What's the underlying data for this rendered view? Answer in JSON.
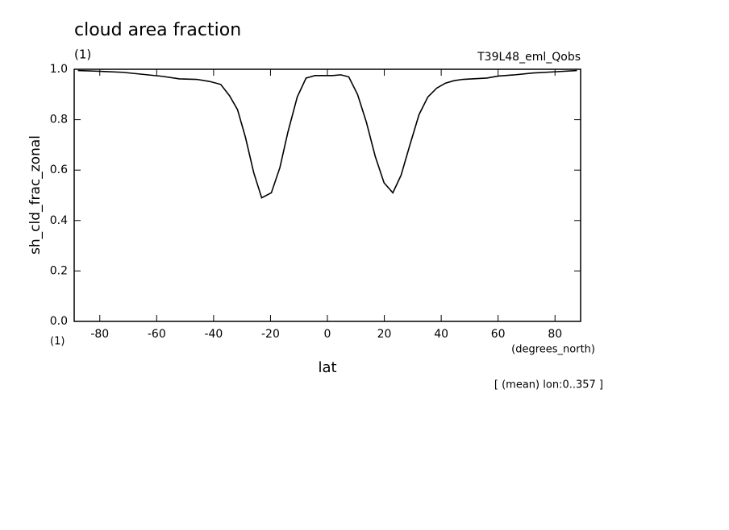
{
  "chart_data": {
    "type": "line",
    "title": "cloud area fraction",
    "subtitle": "(1)",
    "annotation": "T39L48_eml_Qobs",
    "ylabel": "sh_cld_frac_zonal",
    "yunit": "(1)",
    "xunit": "(degrees_north)",
    "xlabel": "lat",
    "note": "[ (mean) lon:0..357 ]",
    "x": [
      -87.7,
      -80,
      -72,
      -65,
      -58,
      -52,
      -46,
      -41.5,
      -37.5,
      -34.4,
      -31.6,
      -28.8,
      -25.9,
      -23.1,
      -19.7,
      -16.7,
      -13.9,
      -10.6,
      -7.5,
      -4.4,
      -1.3,
      1.8,
      4.7,
      7.5,
      10.6,
      13.7,
      16.8,
      19.9,
      23.0,
      25.9,
      29.0,
      32.2,
      35.3,
      38.4,
      41.5,
      44.6,
      47.7,
      50.8,
      56,
      60,
      66,
      72,
      80,
      87.7
    ],
    "series": [
      {
        "name": "sh_cld_frac_zonal",
        "color": "#000000",
        "values": [
          0.995,
          0.992,
          0.988,
          0.98,
          0.972,
          0.962,
          0.96,
          0.952,
          0.94,
          0.895,
          0.84,
          0.73,
          0.59,
          0.49,
          0.51,
          0.61,
          0.75,
          0.89,
          0.965,
          0.975,
          0.975,
          0.975,
          0.978,
          0.97,
          0.9,
          0.79,
          0.655,
          0.55,
          0.51,
          0.58,
          0.7,
          0.82,
          0.89,
          0.925,
          0.945,
          0.955,
          0.96,
          0.962,
          0.965,
          0.973,
          0.978,
          0.985,
          0.99,
          0.995
        ]
      }
    ],
    "xlim": [
      -89,
      89
    ],
    "xticks": [
      -80,
      -60,
      -40,
      -20,
      0,
      20,
      40,
      60,
      80
    ],
    "ylim": [
      0,
      1
    ],
    "yticks": [
      {
        "value": 0,
        "label": "0.0"
      },
      0.2,
      0.4,
      0.6,
      0.8,
      {
        "value": 1,
        "label": "1.0"
      }
    ]
  }
}
